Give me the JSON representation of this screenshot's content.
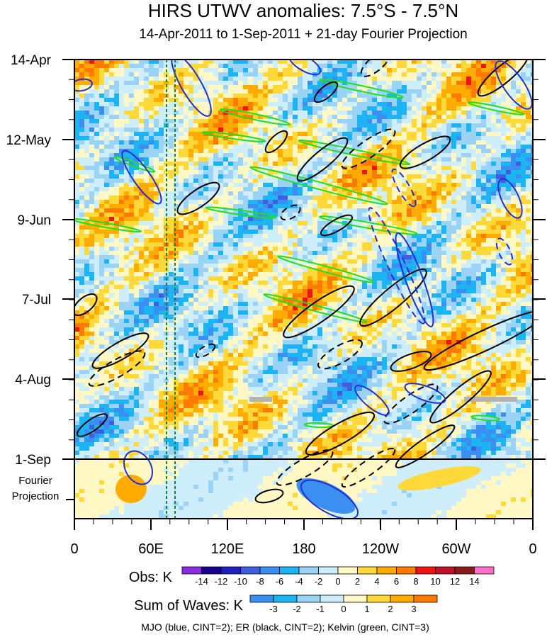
{
  "chart_data": {
    "type": "heatmap",
    "title": "HIRS UTWV anomalies: 7.5°S - 7.5°N",
    "subtitle": "14-Apr-2011 to 1-Sep-2011 + 21-day Fourier Projection",
    "x_ticks": [
      "0",
      "60E",
      "120E",
      "180",
      "120W",
      "60W",
      "0"
    ],
    "y_ticks": [
      "14-Apr",
      "12-May",
      "9-Jun",
      "7-Jul",
      "4-Aug",
      "1-Sep"
    ],
    "projection_label": "Fourier Projection",
    "projection_label_lines": [
      "Fourier",
      "Projection"
    ],
    "obs_legend": {
      "label": "Obs: K",
      "ticks": [
        "-14",
        "-12",
        "-10",
        "-8",
        "-6",
        "-4",
        "-2",
        "0",
        "2",
        "4",
        "6",
        "8",
        "10",
        "12",
        "14"
      ],
      "colors": [
        "#8a2be2",
        "#17008f",
        "#1f1fbd",
        "#3f5fe0",
        "#3b8ff0",
        "#1cb4f2",
        "#9ad3f5",
        "#cfeefb",
        "#fff8c4",
        "#ffd93a",
        "#ffab00",
        "#ff7a00",
        "#f01414",
        "#c0102a",
        "#8b1a1a",
        "#ff6ec7"
      ]
    },
    "waves_legend": {
      "label": "Sum of Waves: K",
      "ticks": [
        "-3",
        "-2",
        "-1",
        "0",
        "1",
        "2",
        "3"
      ],
      "colors": [
        "#3b8ff0",
        "#1cb4f2",
        "#9ad3f5",
        "#cfeefb",
        "#fff8c4",
        "#ffd93a",
        "#ffab00",
        "#ff7a00"
      ]
    },
    "footer": "MJO (blue, CINT=2); ER (black, CINT=2); Kelvin (green, CINT=3)",
    "series": [
      {
        "name": "MJO",
        "color": "#1f2fd6",
        "cint": 2
      },
      {
        "name": "ER",
        "color": "#000000",
        "cint": 2
      },
      {
        "name": "Kelvin",
        "color": "#1ee01e",
        "cint": 3
      }
    ],
    "xlim_deg_east": [
      0,
      360
    ],
    "ylim_days_from_14Apr": [
      0,
      162
    ]
  }
}
